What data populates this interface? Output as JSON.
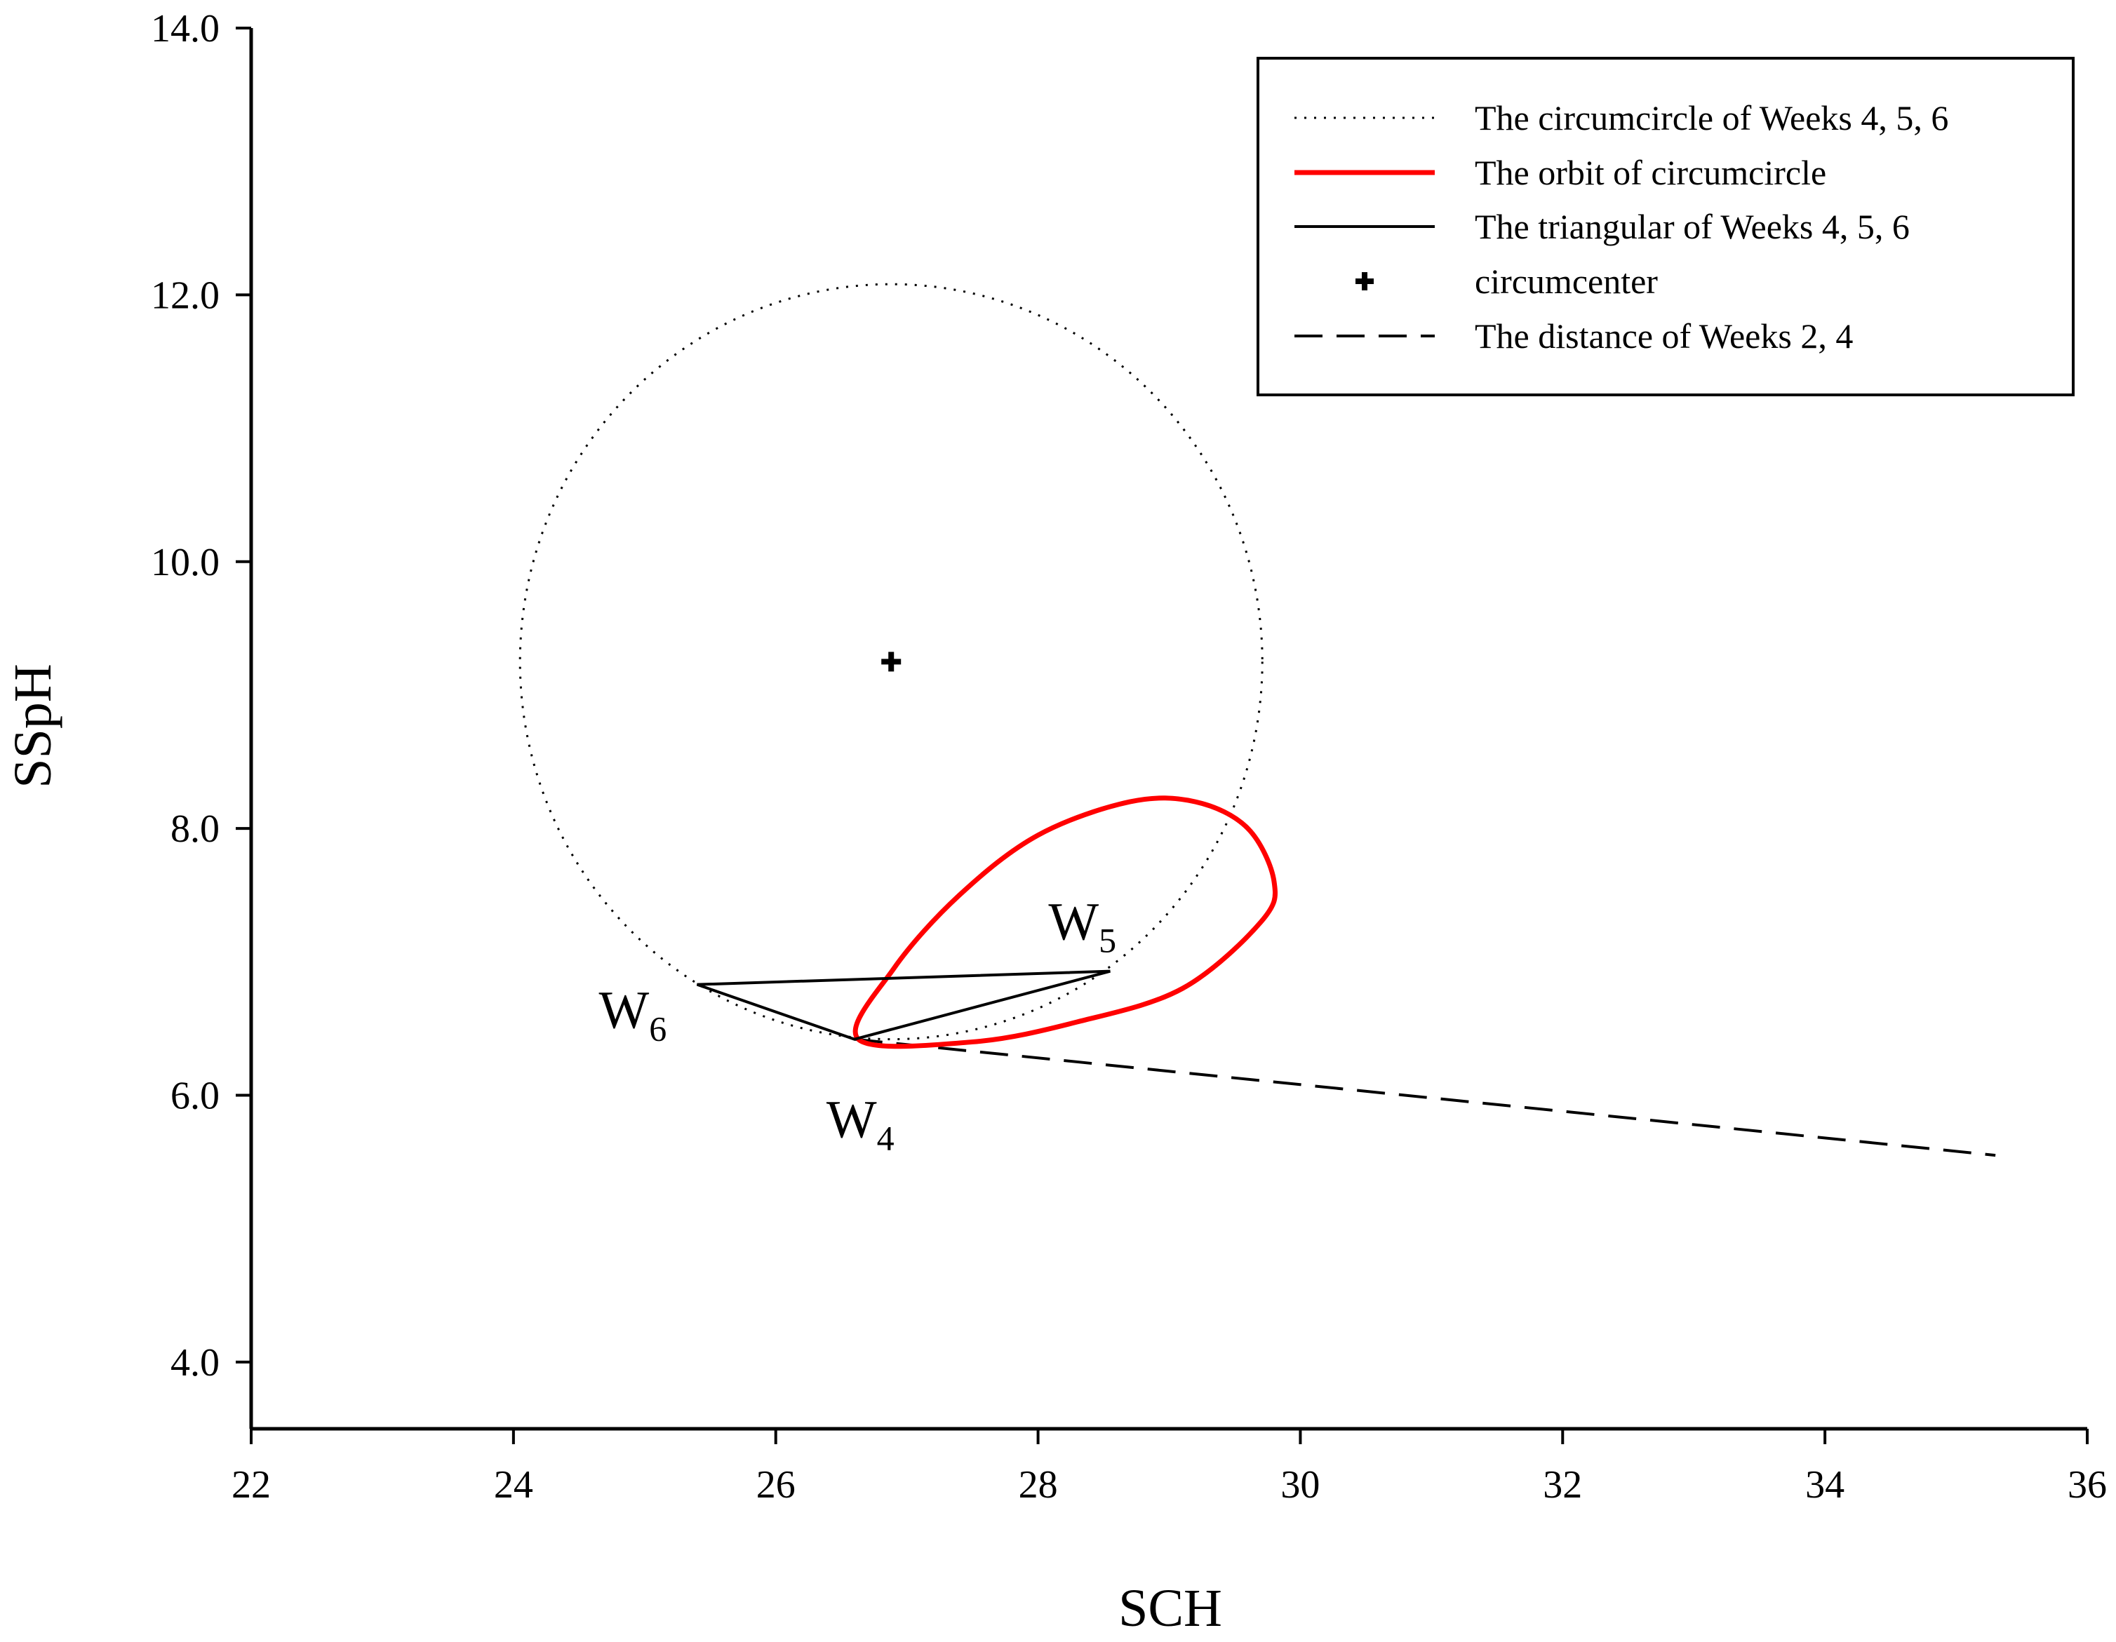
{
  "chart_data": {
    "type": "scatter",
    "xlabel": "SCH",
    "ylabel": "SSpH",
    "xlim": [
      22,
      36
    ],
    "ylim": [
      3.5,
      14.0
    ],
    "xticks": [
      22,
      24,
      26,
      28,
      30,
      32,
      34,
      36
    ],
    "yticks": [
      4.0,
      6.0,
      8.0,
      10.0,
      12.0,
      14.0
    ],
    "xtick_labels": [
      "22",
      "24",
      "26",
      "28",
      "30",
      "32",
      "34",
      "36"
    ],
    "ytick_labels": [
      "4.0",
      "6.0",
      "8.0",
      "10.0",
      "12.0",
      "14.0"
    ],
    "grid": false,
    "legend_position": "top-right",
    "legend": [
      {
        "label": "The circumcircle of Weeks 4, 5, 6",
        "style": "dotted",
        "color": "#000000"
      },
      {
        "label": "The orbit of circumcircle",
        "style": "solid",
        "color": "#ff0000"
      },
      {
        "label": "The triangular of Weeks 4, 5, 6",
        "style": "solid",
        "color": "#000000"
      },
      {
        "label": "circumcenter",
        "style": "marker-plus",
        "color": "#000000"
      },
      {
        "label": "The distance of Weeks 2, 4",
        "style": "dashed",
        "color": "#000000"
      }
    ],
    "points": {
      "W4": {
        "x": 26.6,
        "y": 6.42,
        "label": "W",
        "sub": "4"
      },
      "W5": {
        "x": 28.55,
        "y": 6.93,
        "label": "W",
        "sub": "5"
      },
      "W6": {
        "x": 25.4,
        "y": 6.83,
        "label": "W",
        "sub": "6"
      }
    },
    "circumcenter": {
      "x": 26.88,
      "y": 9.25
    },
    "circumcircle": {
      "cx": 26.88,
      "cy": 9.25,
      "r": 2.83
    },
    "triangle": [
      [
        26.6,
        6.42
      ],
      [
        28.55,
        6.93
      ],
      [
        25.4,
        6.83
      ]
    ],
    "distance_line": [
      [
        26.6,
        6.42
      ],
      [
        35.3,
        5.55
      ]
    ],
    "orbit": [
      [
        26.63,
        6.42
      ],
      [
        27.5,
        6.4
      ],
      [
        28.3,
        6.55
      ],
      [
        29.1,
        6.8
      ],
      [
        29.7,
        7.3
      ],
      [
        29.8,
        7.6
      ],
      [
        29.6,
        8.0
      ],
      [
        29.2,
        8.2
      ],
      [
        28.7,
        8.2
      ],
      [
        28.0,
        7.95
      ],
      [
        27.4,
        7.5
      ],
      [
        26.9,
        6.95
      ],
      [
        26.63,
        6.42
      ]
    ]
  },
  "colors": {
    "orbit": "#ff0000",
    "ink": "#000000"
  }
}
